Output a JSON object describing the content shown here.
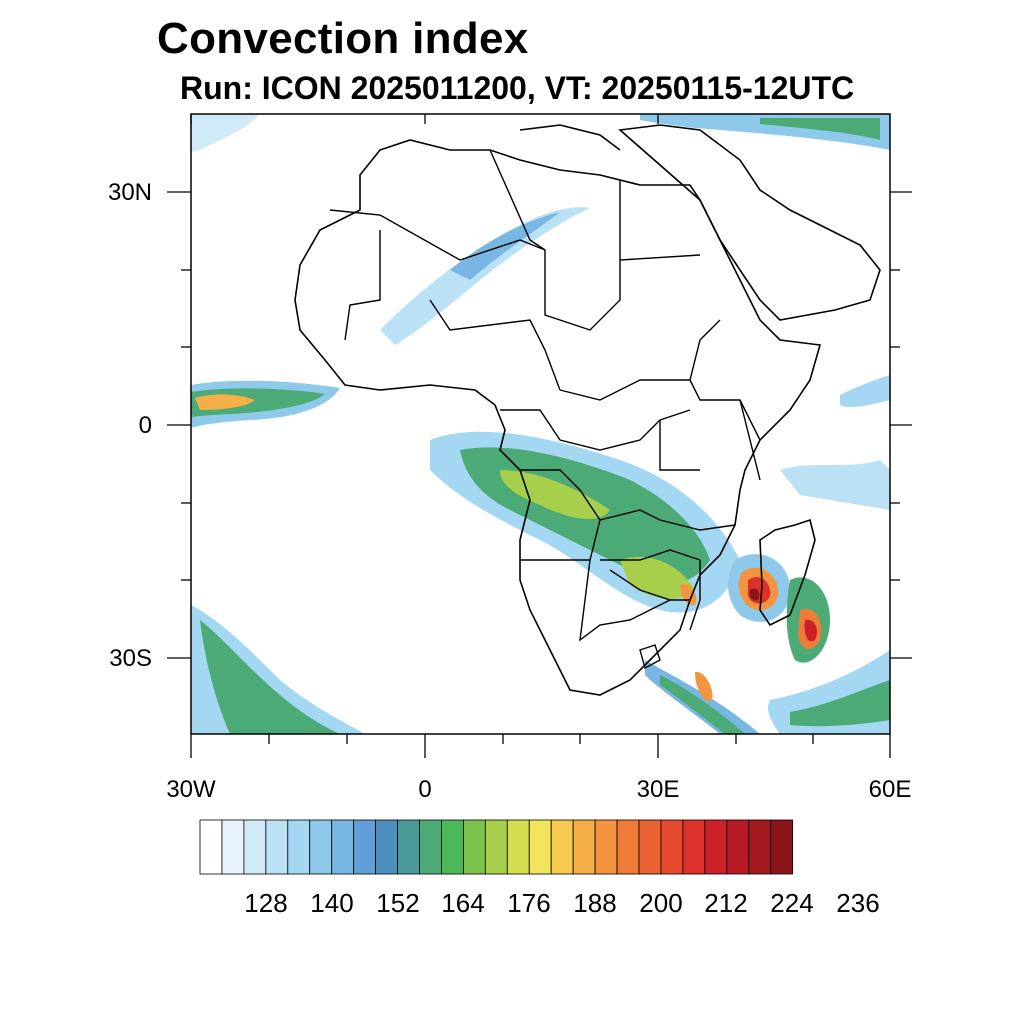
{
  "title": "Convection index",
  "subtitle": "Run: ICON 2025011200,  VT: 20250115-12UTC",
  "axes": {
    "lat_labels": [
      "30N",
      "0",
      "30S"
    ],
    "lon_labels": [
      "30W",
      "0",
      "30E",
      "60E"
    ],
    "lon_range": [
      -30,
      60
    ],
    "lat_range": [
      -40,
      40
    ]
  },
  "colorbar": {
    "labels": [
      "128",
      "140",
      "152",
      "164",
      "176",
      "188",
      "200",
      "212",
      "224",
      "236"
    ],
    "colors": [
      "#ffffff",
      "#e8f4fb",
      "#d0eaf7",
      "#bbe1f4",
      "#a4d7f2",
      "#8ec9ec",
      "#78b6e4",
      "#619fd6",
      "#4e8fbd",
      "#4a9a9a",
      "#4caa77",
      "#4db85a",
      "#7dc24e",
      "#a8cf4c",
      "#d3de50",
      "#f2e55b",
      "#f6c94f",
      "#f5ae48",
      "#f39540",
      "#ef7b38",
      "#ea6232",
      "#e4492e",
      "#dc312c",
      "#cb2229",
      "#b81b25",
      "#a31920",
      "#8b1519"
    ]
  }
}
